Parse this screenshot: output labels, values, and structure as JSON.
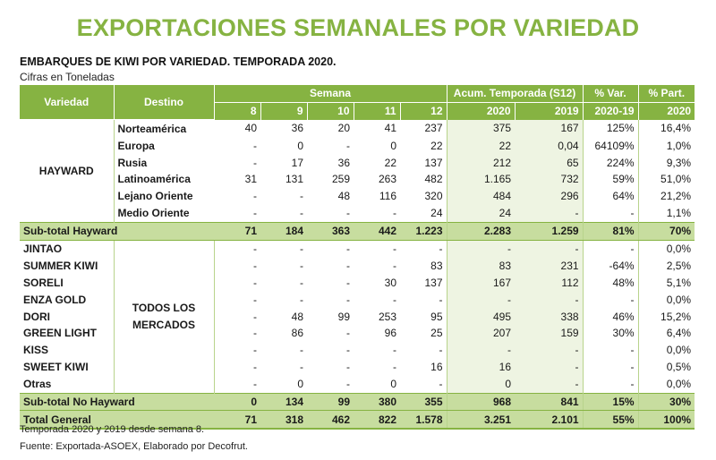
{
  "title": "EXPORTACIONES SEMANALES POR VARIEDAD",
  "subtitle": "EMBARQUES DE KIWI POR VARIEDAD. TEMPORADA 2020.",
  "units": "Cifras en Toneladas",
  "headers": {
    "variedad": "Variedad",
    "destino": "Destino",
    "semana": "Semana",
    "acum": "Acum. Temporada (S12)",
    "var": "% Var.",
    "part": "% Part.",
    "weeks": [
      "8",
      "9",
      "10",
      "11",
      "12"
    ],
    "acum_years": [
      "2020",
      "2019"
    ],
    "var_period": "2020-19",
    "part_year": "2020"
  },
  "hayward": {
    "label": "HAYWARD",
    "rows": [
      {
        "destino": "Norteamérica",
        "w": [
          "40",
          "36",
          "20",
          "41",
          "237"
        ],
        "a2020": "375",
        "a2019": "167",
        "var": "125%",
        "part": "16,4%"
      },
      {
        "destino": "Europa",
        "w": [
          "-",
          "0",
          "-",
          "0",
          "22"
        ],
        "a2020": "22",
        "a2019": "0,04",
        "var": "64109%",
        "part": "1,0%"
      },
      {
        "destino": "Rusia",
        "w": [
          "-",
          "17",
          "36",
          "22",
          "137"
        ],
        "a2020": "212",
        "a2019": "65",
        "var": "224%",
        "part": "9,3%"
      },
      {
        "destino": "Latinoamérica",
        "w": [
          "31",
          "131",
          "259",
          "263",
          "482"
        ],
        "a2020": "1.165",
        "a2019": "732",
        "var": "59%",
        "part": "51,0%"
      },
      {
        "destino": "Lejano Oriente",
        "w": [
          "-",
          "-",
          "48",
          "116",
          "320"
        ],
        "a2020": "484",
        "a2019": "296",
        "var": "64%",
        "part": "21,2%"
      },
      {
        "destino": "Medio Oriente",
        "w": [
          "-",
          "-",
          "-",
          "-",
          "24"
        ],
        "a2020": "24",
        "a2019": "-",
        "var": "-",
        "part": "1,1%"
      }
    ],
    "subtotal": {
      "label": "Sub-total Hayward",
      "w": [
        "71",
        "184",
        "363",
        "442",
        "1.223"
      ],
      "a2020": "2.283",
      "a2019": "1.259",
      "var": "81%",
      "part": "70%"
    }
  },
  "others": {
    "market_line1": "TODOS LOS",
    "market_line2": "MERCADOS",
    "rows": [
      {
        "variedad": "JINTAO",
        "w": [
          "-",
          "-",
          "-",
          "-",
          "-"
        ],
        "a2020": "-",
        "a2019": "-",
        "var": "-",
        "part": "0,0%"
      },
      {
        "variedad": "SUMMER KIWI",
        "w": [
          "-",
          "-",
          "-",
          "-",
          "83"
        ],
        "a2020": "83",
        "a2019": "231",
        "var": "-64%",
        "part": "2,5%"
      },
      {
        "variedad": "SORELI",
        "w": [
          "-",
          "-",
          "-",
          "30",
          "137"
        ],
        "a2020": "167",
        "a2019": "112",
        "var": "48%",
        "part": "5,1%"
      },
      {
        "variedad": "ENZA GOLD",
        "w": [
          "-",
          "-",
          "-",
          "-",
          "-"
        ],
        "a2020": "-",
        "a2019": "-",
        "var": "-",
        "part": "0,0%"
      },
      {
        "variedad": "DORI",
        "w": [
          "-",
          "48",
          "99",
          "253",
          "95"
        ],
        "a2020": "495",
        "a2019": "338",
        "var": "46%",
        "part": "15,2%"
      },
      {
        "variedad": "GREEN LIGHT",
        "w": [
          "-",
          "86",
          "-",
          "96",
          "25"
        ],
        "a2020": "207",
        "a2019": "159",
        "var": "30%",
        "part": "6,4%"
      },
      {
        "variedad": "KISS",
        "w": [
          "-",
          "-",
          "-",
          "-",
          "-"
        ],
        "a2020": "-",
        "a2019": "-",
        "var": "-",
        "part": "0,0%"
      },
      {
        "variedad": "SWEET KIWI",
        "w": [
          "-",
          "-",
          "-",
          "-",
          "16"
        ],
        "a2020": "16",
        "a2019": "-",
        "var": "-",
        "part": "0,5%"
      },
      {
        "variedad": "Otras",
        "w": [
          "-",
          "0",
          "-",
          "0",
          "-"
        ],
        "a2020": "0",
        "a2019": "-",
        "var": "-",
        "part": "0,0%"
      }
    ],
    "subtotal": {
      "label": "Sub-total No Hayward",
      "w": [
        "0",
        "134",
        "99",
        "380",
        "355"
      ],
      "a2020": "968",
      "a2019": "841",
      "var": "15%",
      "part": "30%"
    }
  },
  "total": {
    "label": "Total General",
    "w": [
      "71",
      "318",
      "462",
      "822",
      "1.578"
    ],
    "a2020": "3.251",
    "a2019": "2.101",
    "var": "55%",
    "part": "100%"
  },
  "notes": {
    "note1": "Temporada 2020 y 2019 desde semana 8.",
    "note2": "Fuente: Exportada-ASOEX, Elaborado por Decofrut."
  },
  "colors": {
    "accent": "#86b342",
    "subtotal_bg": "#c7dd9f",
    "acum_bg": "#eef4e2"
  }
}
